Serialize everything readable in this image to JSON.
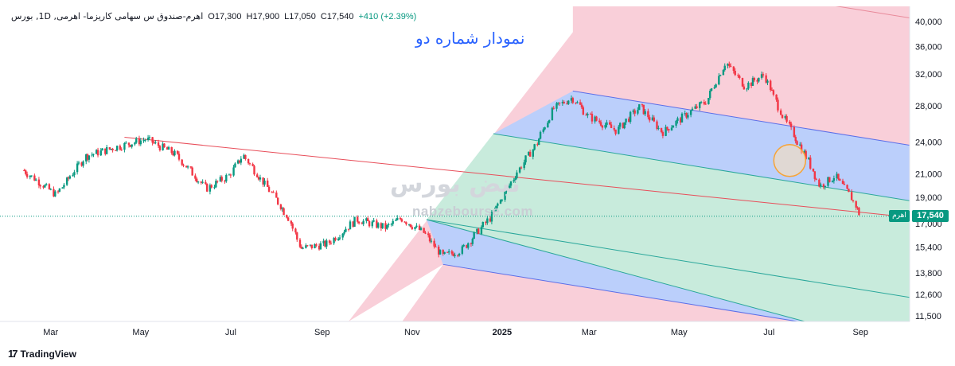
{
  "header": {
    "symbol": "اهرم-صندوق س سهامی کاریزما- اهرمی, 1D, بورس",
    "open_label": "O",
    "open": "17,300",
    "high_label": "H",
    "high": "17,900",
    "low_label": "L",
    "low": "17,050",
    "close_label": "C",
    "close": "17,540",
    "change": "+410 (+2.39%)"
  },
  "annotation_title": "نمودار شماره دو",
  "watermark": {
    "logo": "نبض بورس",
    "url": "nabzebourse.com"
  },
  "price_tag": {
    "symbol": "اهرم",
    "value": "17,540"
  },
  "branding": {
    "logo": "17",
    "name": "TradingView"
  },
  "colors": {
    "up": "#089981",
    "down": "#f23645",
    "band_blue": "#bbcffb",
    "band_green": "#c8ebdc",
    "band_pink": "#f9cfd9",
    "median_line": "#e84e5a",
    "title": "#2962ff"
  },
  "chart_data": {
    "type": "candlestick",
    "timeframe": "1D",
    "title": "",
    "y_axis": {
      "scale": "log",
      "ticks": [
        11500,
        12600,
        13800,
        15400,
        17000,
        19000,
        21000,
        24000,
        28000,
        32000,
        36000,
        40000
      ],
      "tick_labels": [
        "11,500",
        "12,600",
        "13,800",
        "15,400",
        "17,000",
        "19,000",
        "21,000",
        "24,000",
        "28,000",
        "32,000",
        "36,000",
        "40,000"
      ]
    },
    "x_axis": {
      "ticks": [
        "2024-03-01",
        "2024-05-01",
        "2024-07-01",
        "2024-09-01",
        "2024-11-01",
        "2025-01-01",
        "2025-03-01",
        "2025-05-01",
        "2025-07-01",
        "2025-09-01"
      ],
      "tick_labels": [
        "Mar",
        "May",
        "Jul",
        "Sep",
        "Nov",
        "2025",
        "Mar",
        "May",
        "Jul",
        "Sep"
      ]
    },
    "last_price": 17540,
    "path": [
      [
        "2024-02-12",
        21300
      ],
      [
        "2024-03-05",
        19200
      ],
      [
        "2024-03-25",
        22600
      ],
      [
        "2024-04-15",
        23500
      ],
      [
        "2024-05-05",
        24300
      ],
      [
        "2024-05-25",
        22800
      ],
      [
        "2024-06-15",
        19700
      ],
      [
        "2024-06-30",
        20800
      ],
      [
        "2024-07-10",
        22700
      ],
      [
        "2024-07-30",
        19200
      ],
      [
        "2024-08-10",
        17400
      ],
      [
        "2024-08-18",
        15300
      ],
      [
        "2024-09-05",
        15600
      ],
      [
        "2024-09-25",
        17300
      ],
      [
        "2024-10-15",
        16700
      ],
      [
        "2024-10-25",
        17400
      ],
      [
        "2024-11-10",
        16300
      ],
      [
        "2024-11-22",
        14800
      ],
      [
        "2024-12-05",
        15200
      ],
      [
        "2024-12-25",
        17500
      ],
      [
        "2025-01-10",
        20800
      ],
      [
        "2025-01-25",
        23900
      ],
      [
        "2025-02-05",
        27600
      ],
      [
        "2025-02-18",
        29000
      ],
      [
        "2025-03-01",
        26800
      ],
      [
        "2025-03-20",
        25200
      ],
      [
        "2025-04-05",
        27900
      ],
      [
        "2025-04-20",
        25000
      ],
      [
        "2025-05-05",
        26800
      ],
      [
        "2025-05-20",
        28600
      ],
      [
        "2025-06-02",
        33700
      ],
      [
        "2025-06-15",
        30400
      ],
      [
        "2025-06-28",
        31900
      ],
      [
        "2025-07-12",
        26400
      ],
      [
        "2025-07-20",
        24300
      ],
      [
        "2025-07-28",
        22200
      ],
      [
        "2025-08-05",
        19900
      ],
      [
        "2025-08-15",
        20800
      ],
      [
        "2025-08-25",
        19200
      ],
      [
        "2025-09-02",
        17540
      ]
    ],
    "pitchfork": {
      "pivots": [
        [
          "2024-11-22",
          14300
        ],
        [
          "2025-02-18",
          29800
        ],
        [
          "2025-01-20",
          25000
        ]
      ],
      "median_from": [
        "2024-04-20",
        24500
      ]
    },
    "highlight_circle": {
      "date": "2025-07-15",
      "price": 22200
    }
  }
}
